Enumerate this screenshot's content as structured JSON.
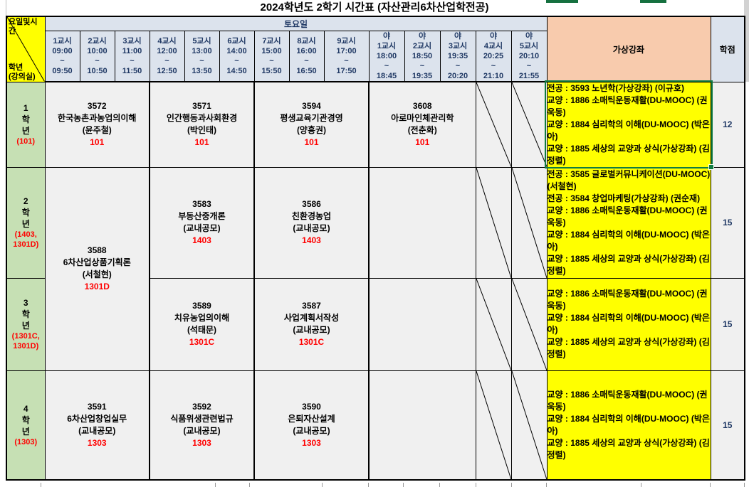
{
  "title": "2024학년도 2학기 시간표 (자산관리6차산업학전공)",
  "colors": {
    "header_bg": "#dce3ed",
    "virtual_header_bg": "#f8cbad",
    "virtual_cell_bg": "#ffff00",
    "grade_label_bg": "#c6e0b4",
    "body_bg": "#f0f0f0",
    "room_text": "#ff0000",
    "header_text": "#1f3864",
    "selection_border": "#107c41"
  },
  "header": {
    "corner_top": "요일및시간",
    "corner_bottom": [
      "학년",
      "(강의실)"
    ],
    "saturday": "토요일",
    "virtual": "가상강좌",
    "credits": "학점",
    "periods": [
      [
        "1교시",
        "09:00",
        "~",
        "09:50"
      ],
      [
        "2교시",
        "10:00",
        "~",
        "10:50"
      ],
      [
        "3교시",
        "11:00",
        "~",
        "11:50"
      ],
      [
        "4교시",
        "12:00",
        "~",
        "12:50"
      ],
      [
        "5교시",
        "13:00",
        "~",
        "13:50"
      ],
      [
        "6교시",
        "14:00",
        "~",
        "14:50"
      ],
      [
        "7교시",
        "15:00",
        "~",
        "15:50"
      ],
      [
        "8교시",
        "16:00",
        "~",
        "16:50"
      ],
      [
        "9교시",
        "17:00",
        "~",
        "17:50"
      ]
    ],
    "night_periods": [
      [
        "야",
        "1교시",
        "18:00",
        "~",
        "18:45"
      ],
      [
        "야",
        "2교시",
        "18:50",
        "~",
        "19:35"
      ],
      [
        "야",
        "3교시",
        "19:35",
        "~",
        "20:20"
      ],
      [
        "야",
        "4교시",
        "20:25",
        "~",
        "21:10"
      ],
      [
        "야",
        "5교시",
        "20:10",
        "~",
        "21:55"
      ]
    ]
  },
  "grades": [
    {
      "label_lines": [
        "1",
        "학",
        "년"
      ],
      "room": "(101)",
      "credits": "12",
      "courses": {
        "p1_3": {
          "code": "3572",
          "name": "한국농촌과농업의이해",
          "prof": "(윤주철)",
          "room": "101"
        },
        "p4_6": {
          "code": "3571",
          "name": "인간행동과사회환경",
          "prof": "(박인태)",
          "room": "101"
        },
        "p7_9": {
          "code": "3594",
          "name": "평생교육기관경영",
          "prof": "(양흥권)",
          "room": "101"
        },
        "night": {
          "code": "3608",
          "name": "아로마인체관리학",
          "prof": "(전춘화)",
          "room": "101"
        }
      },
      "virtual": [
        "전공 : 3593 노년학(가상강좌) (이규호)",
        "교양 : 1886 소매틱운동재활(DU-MOOC) (권욱동)",
        "교양 : 1884 심리학의 이해(DU-MOOC) (박은아)",
        "교양 : 1885 세상의 교양과 상식(가상강좌) (김정렬)"
      ]
    },
    {
      "label_lines": [
        "2",
        "학",
        "년"
      ],
      "room": "(1403, 1301D)",
      "credits": "15",
      "courses": {
        "p1_3_merged": {
          "code": "3588",
          "name": "6차산업상품기획론",
          "prof": "(서철현)",
          "room": "1301D"
        },
        "p4_6": {
          "code": "3583",
          "name": "부동산중개론",
          "prof": "(교내공모)",
          "room": "1403"
        },
        "p7_9": {
          "code": "3586",
          "name": "친환경농업",
          "prof": "(교내공모)",
          "room": "1403"
        }
      },
      "virtual": [
        "전공 : 3585 글로벌커뮤니케이션(DU-MOOC)(서철현)",
        "전공 : 3584 창업마케팅(가상강좌) (권순재)",
        "교양 : 1886 소매틱운동재활(DU-MOOC) (권욱동)",
        "교양 : 1884 심리학의 이해(DU-MOOC) (박은아)",
        "교양 : 1885 세상의 교양과 상식(가상강좌) (김정렬)"
      ]
    },
    {
      "label_lines": [
        "3",
        "학",
        "년"
      ],
      "room": "(1301C, 1301D)",
      "credits": "15",
      "courses": {
        "p4_6": {
          "code": "3589",
          "name": "치유농업의이해",
          "prof": "(석태문)",
          "room": "1301C"
        },
        "p7_9": {
          "code": "3587",
          "name": "사업계획서작성",
          "prof": "(교내공모)",
          "room": "1301C"
        }
      },
      "virtual": [
        "교양 : 1886 소매틱운동재활(DU-MOOC) (권욱동)",
        "교양 : 1884 심리학의 이해(DU-MOOC) (박은아)",
        "교양 : 1885 세상의 교양과 상식(가상강좌) (김정렬)"
      ]
    },
    {
      "label_lines": [
        "4",
        "학",
        "년"
      ],
      "room": "(1303)",
      "credits": "15",
      "courses": {
        "p1_3": {
          "code": "3591",
          "name": "6차산업창업실무",
          "prof": "(교내공모)",
          "room": "1303"
        },
        "p4_6": {
          "code": "3592",
          "name": "식품위생관련법규",
          "prof": "(교내공모)",
          "room": "1303"
        },
        "p7_9": {
          "code": "3590",
          "name": "은퇴자산설계",
          "prof": "(교내공모)",
          "room": "1303"
        }
      },
      "virtual": [
        "교양 : 1886 소매틱운동재활(DU-MOOC) (권욱동)",
        "교양 : 1884 심리학의 이해(DU-MOOC) (박은아)",
        "교양 : 1885 세상의 교양과 상식(가상강좌) (김정렬)"
      ]
    }
  ]
}
